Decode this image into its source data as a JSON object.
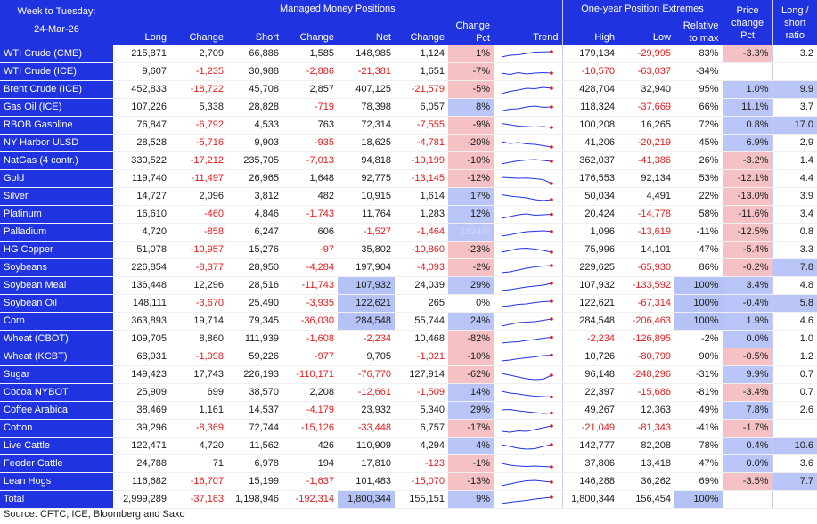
{
  "header": {
    "corner_line1": "Week to Tuesday:",
    "corner_line2": "24-Mar-26",
    "group_mm": "Managed Money Positions",
    "group_ext": "One-year Position Extremes",
    "price_change_pct": "Price change Pct",
    "long_short_ratio": "Long / short ratio",
    "cols": {
      "long": "Long",
      "change": "Change",
      "short": "Short",
      "change2": "Change",
      "net": "Net",
      "change3": "Change",
      "change_pct": "Change Pct",
      "trend": "Trend",
      "high": "High",
      "low": "Low",
      "relative": "Relative to max"
    }
  },
  "rows": [
    {
      "name": "WTI Crude (CME)",
      "long": "215,871",
      "chg": "2,709",
      "short": "66,886",
      "chg2": "1,585",
      "net": "148,985",
      "chg3": "1,124",
      "pct": "1%",
      "high": "179,134",
      "low": "-29,995",
      "rel": "83%",
      "price": "-3.3%",
      "ratio": "3.2",
      "trend": [
        0.3,
        0.5,
        0.55,
        0.7,
        0.85,
        0.88,
        0.9
      ]
    },
    {
      "name": "WTI Crude (ICE)",
      "long": "9,607",
      "chg": "-1,235",
      "short": "30,988",
      "chg2": "-2,886",
      "net": "-21,381",
      "chg3": "1,651",
      "pct": "-7%",
      "high": "-10,570",
      "low": "-63,037",
      "rel": "-34%",
      "price": "",
      "ratio": "",
      "trend": [
        0.5,
        0.35,
        0.55,
        0.4,
        0.5,
        0.55,
        0.5
      ]
    },
    {
      "name": "Brent Crude (ICE)",
      "long": "452,833",
      "chg": "-18,722",
      "short": "45,708",
      "chg2": "2,857",
      "net": "407,125",
      "chg3": "-21,579",
      "pct": "-5%",
      "high": "428,704",
      "low": "32,940",
      "rel": "95%",
      "price": "1.0%",
      "ratio": "9.9",
      "trend": [
        0.2,
        0.45,
        0.6,
        0.8,
        0.75,
        0.9,
        0.8
      ]
    },
    {
      "name": "Gas Oil (ICE)",
      "long": "107,226",
      "chg": "5,338",
      "short": "28,828",
      "chg2": "-719",
      "net": "78,398",
      "chg3": "6,057",
      "pct": "8%",
      "high": "118,324",
      "low": "-37,669",
      "rel": "66%",
      "price": "11.1%",
      "ratio": "3.7",
      "trend": [
        0.25,
        0.45,
        0.5,
        0.7,
        0.8,
        0.65,
        0.7
      ]
    },
    {
      "name": "RBOB Gasoline",
      "long": "76,847",
      "chg": "-6,792",
      "short": "4,533",
      "chg2": "763",
      "net": "72,314",
      "chg3": "-7,555",
      "pct": "-9%",
      "high": "100,208",
      "low": "16,265",
      "rel": "72%",
      "price": "0.8%",
      "ratio": "17.0",
      "trend": [
        0.85,
        0.7,
        0.55,
        0.5,
        0.45,
        0.5,
        0.4
      ]
    },
    {
      "name": "NY Harbor ULSD",
      "long": "28,528",
      "chg": "-5,716",
      "short": "9,903",
      "chg2": "-935",
      "net": "18,625",
      "chg3": "-4,781",
      "pct": "-20%",
      "high": "41,206",
      "low": "-20,219",
      "rel": "45%",
      "price": "6.9%",
      "ratio": "2.9",
      "trend": [
        0.8,
        0.6,
        0.7,
        0.55,
        0.5,
        0.35,
        0.2
      ]
    },
    {
      "name": "NatGas (4 contr.)",
      "long": "330,522",
      "chg": "-17,212",
      "short": "235,705",
      "chg2": "-7,013",
      "net": "94,818",
      "chg3": "-10,199",
      "pct": "-10%",
      "high": "362,037",
      "low": "-41,386",
      "rel": "26%",
      "price": "-3.2%",
      "ratio": "1.4",
      "trend": [
        0.3,
        0.5,
        0.65,
        0.75,
        0.8,
        0.7,
        0.6
      ]
    },
    {
      "name": "Gold",
      "long": "119,740",
      "chg": "-11,497",
      "short": "26,965",
      "chg2": "1,648",
      "net": "92,775",
      "chg3": "-13,145",
      "pct": "-12%",
      "high": "176,553",
      "low": "92,134",
      "rel": "53%",
      "price": "-12.1%",
      "ratio": "4.4",
      "trend": [
        0.8,
        0.75,
        0.7,
        0.72,
        0.65,
        0.55,
        0.1
      ]
    },
    {
      "name": "Silver",
      "long": "14,727",
      "chg": "2,096",
      "short": "3,812",
      "chg2": "482",
      "net": "10,915",
      "chg3": "1,614",
      "pct": "17%",
      "high": "50,034",
      "low": "4,491",
      "rel": "22%",
      "price": "-13.0%",
      "ratio": "3.9",
      "trend": [
        0.85,
        0.7,
        0.6,
        0.5,
        0.3,
        0.2,
        0.3
      ]
    },
    {
      "name": "Platinum",
      "long": "16,610",
      "chg": "-460",
      "short": "4,846",
      "chg2": "-1,743",
      "net": "11,764",
      "chg3": "1,283",
      "pct": "12%",
      "high": "20,424",
      "low": "-14,778",
      "rel": "58%",
      "price": "-11.6%",
      "ratio": "3.4",
      "trend": [
        0.2,
        0.4,
        0.6,
        0.7,
        0.55,
        0.6,
        0.65
      ]
    },
    {
      "name": "Palladium",
      "long": "4,720",
      "chg": "-858",
      "short": "6,247",
      "chg2": "606",
      "net": "-1,527",
      "chg3": "-1,464",
      "pct": "2324%",
      "high": "1,096",
      "low": "-13,619",
      "rel": "-11%",
      "price": "-12.5%",
      "ratio": "0.8",
      "trend": [
        0.2,
        0.35,
        0.55,
        0.7,
        0.75,
        0.8,
        0.72
      ]
    },
    {
      "name": "HG Copper",
      "long": "51,078",
      "chg": "-10,957",
      "short": "15,276",
      "chg2": "-97",
      "net": "35,802",
      "chg3": "-10,860",
      "pct": "-23%",
      "high": "75,996",
      "low": "14,101",
      "rel": "47%",
      "price": "-5.4%",
      "ratio": "3.3",
      "trend": [
        0.4,
        0.6,
        0.8,
        0.85,
        0.75,
        0.6,
        0.4
      ]
    },
    {
      "name": "Soybeans",
      "long": "226,854",
      "chg": "-8,377",
      "short": "28,950",
      "chg2": "-4,284",
      "net": "197,904",
      "chg3": "-4,093",
      "pct": "-2%",
      "high": "229,625",
      "low": "-65,930",
      "rel": "86%",
      "price": "-0.2%",
      "ratio": "7.8",
      "trend": [
        0.1,
        0.2,
        0.4,
        0.6,
        0.75,
        0.85,
        0.9
      ]
    },
    {
      "name": "Soybean Meal",
      "long": "136,448",
      "chg": "12,296",
      "short": "28,516",
      "chg2": "-11,743",
      "net": "107,932",
      "chg3": "24,039",
      "pct": "29%",
      "high": "107,932",
      "low": "-133,592",
      "rel": "100%",
      "price": "3.4%",
      "ratio": "4.8",
      "trend": [
        0.1,
        0.2,
        0.35,
        0.5,
        0.6,
        0.7,
        0.9
      ]
    },
    {
      "name": "Soybean Oil",
      "long": "148,111",
      "chg": "-3,670",
      "short": "25,490",
      "chg2": "-3,935",
      "net": "122,621",
      "chg3": "265",
      "pct": "0%",
      "high": "122,621",
      "low": "-67,314",
      "rel": "100%",
      "price": "-0.4%",
      "ratio": "5.8",
      "trend": [
        0.3,
        0.4,
        0.55,
        0.6,
        0.75,
        0.85,
        0.9
      ]
    },
    {
      "name": "Corn",
      "long": "363,893",
      "chg": "19,714",
      "short": "79,345",
      "chg2": "-36,030",
      "net": "284,548",
      "chg3": "55,744",
      "pct": "24%",
      "high": "284,548",
      "low": "-206,463",
      "rel": "100%",
      "price": "1.9%",
      "ratio": "4.6",
      "trend": [
        0.1,
        0.3,
        0.5,
        0.55,
        0.6,
        0.75,
        0.9
      ]
    },
    {
      "name": "Wheat (CBOT)",
      "long": "109,705",
      "chg": "8,860",
      "short": "111,939",
      "chg2": "-1,608",
      "net": "-2,234",
      "chg3": "10,468",
      "pct": "-82%",
      "high": "-2,234",
      "low": "-126,895",
      "rel": "-2%",
      "price": "0.0%",
      "ratio": "1.0",
      "trend": [
        0.2,
        0.3,
        0.35,
        0.5,
        0.6,
        0.75,
        0.85
      ]
    },
    {
      "name": "Wheat (KCBT)",
      "long": "68,931",
      "chg": "-1,998",
      "short": "59,226",
      "chg2": "-977",
      "net": "9,705",
      "chg3": "-1,021",
      "pct": "-10%",
      "high": "10,726",
      "low": "-80,799",
      "rel": "90%",
      "price": "-0.5%",
      "ratio": "1.2",
      "trend": [
        0.2,
        0.3,
        0.45,
        0.55,
        0.65,
        0.8,
        0.85
      ]
    },
    {
      "name": "Sugar",
      "long": "149,423",
      "chg": "17,743",
      "short": "226,193",
      "chg2": "-110,171",
      "net": "-76,770",
      "chg3": "127,914",
      "pct": "-62%",
      "high": "96,148",
      "low": "-248,296",
      "rel": "-31%",
      "price": "9.9%",
      "ratio": "0.7",
      "trend": [
        0.8,
        0.6,
        0.4,
        0.2,
        0.1,
        0.15,
        0.6
      ]
    },
    {
      "name": "Cocoa NYBOT",
      "long": "25,909",
      "chg": "699",
      "short": "38,570",
      "chg2": "2,208",
      "net": "-12,661",
      "chg3": "-1,509",
      "pct": "14%",
      "high": "22,397",
      "low": "-15,686",
      "rel": "-81%",
      "price": "-3.4%",
      "ratio": "0.7",
      "trend": [
        0.8,
        0.6,
        0.5,
        0.35,
        0.25,
        0.2,
        0.15
      ]
    },
    {
      "name": "Coffee Arabica",
      "long": "38,469",
      "chg": "1,161",
      "short": "14,537",
      "chg2": "-4,179",
      "net": "23,932",
      "chg3": "5,340",
      "pct": "29%",
      "high": "49,267",
      "low": "12,363",
      "rel": "49%",
      "price": "7.8%",
      "ratio": "2.6",
      "trend": [
        0.7,
        0.75,
        0.6,
        0.5,
        0.4,
        0.3,
        0.35
      ]
    },
    {
      "name": "Cotton",
      "long": "39,296",
      "chg": "-8,369",
      "short": "72,744",
      "chg2": "-15,126",
      "net": "-33,448",
      "chg3": "6,757",
      "pct": "-17%",
      "high": "-21,049",
      "low": "-81,343",
      "rel": "-41%",
      "price": "-1.7%",
      "ratio": "",
      "trend": [
        0.3,
        0.2,
        0.35,
        0.3,
        0.5,
        0.7,
        0.9
      ]
    },
    {
      "name": "Live Cattle",
      "long": "122,471",
      "chg": "4,720",
      "short": "11,562",
      "chg2": "426",
      "net": "110,909",
      "chg3": "4,294",
      "pct": "4%",
      "high": "142,777",
      "low": "82,208",
      "rel": "78%",
      "price": "0.4%",
      "ratio": "10.6",
      "trend": [
        0.8,
        0.6,
        0.4,
        0.3,
        0.35,
        0.6,
        0.8
      ]
    },
    {
      "name": "Feeder Cattle",
      "long": "24,788",
      "chg": "71",
      "short": "6,978",
      "chg2": "194",
      "net": "17,810",
      "chg3": "-123",
      "pct": "-1%",
      "high": "37,806",
      "low": "13,418",
      "rel": "47%",
      "price": "0.0%",
      "ratio": "3.6",
      "trend": [
        0.7,
        0.5,
        0.4,
        0.35,
        0.4,
        0.35,
        0.3
      ]
    },
    {
      "name": "Lean Hogs",
      "long": "116,682",
      "chg": "-16,707",
      "short": "15,199",
      "chg2": "-1,637",
      "net": "101,483",
      "chg3": "-15,070",
      "pct": "-13%",
      "high": "146,288",
      "low": "36,262",
      "rel": "69%",
      "price": "-3.5%",
      "ratio": "7.7",
      "trend": [
        0.2,
        0.4,
        0.6,
        0.75,
        0.8,
        0.7,
        0.6
      ]
    }
  ],
  "total": {
    "name": "Total",
    "long": "2,999,289",
    "chg": "-37,163",
    "short": "1,198,946",
    "chg2": "-192,314",
    "net": "1,800,344",
    "chg3": "155,151",
    "pct": "9%",
    "high": "1,800,344",
    "low": "156,454",
    "rel": "100%",
    "trend": [
      0.2,
      0.35,
      0.45,
      0.55,
      0.7,
      0.8,
      0.9
    ]
  },
  "source": "Source: CFTC, ICE, Bloomberg and Saxo",
  "colors": {
    "header_bg": "#1f33e0",
    "negative": "#e11c1c",
    "pos_fill": "#b8c5f6",
    "neg_fill": "#f6c1c4",
    "trend_line": "#1f33e0",
    "trend_dot": "#e11c1c"
  }
}
